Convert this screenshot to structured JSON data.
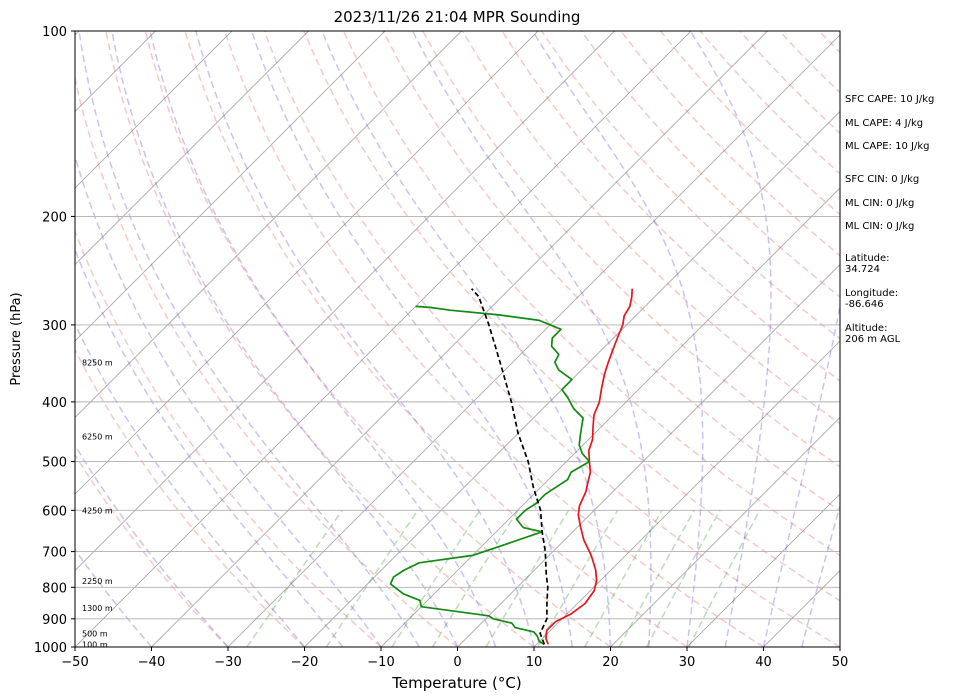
{
  "chart_data": {
    "type": "line",
    "title": "2023/11/26 21:04 MPR Sounding",
    "xlabel": "Temperature (°C)",
    "ylabel": "Pressure (hPa)",
    "xlim": [
      -50,
      50
    ],
    "ylim": [
      1000,
      100
    ],
    "y_scale": "log",
    "grid": true,
    "x_ticks": [
      -50,
      -40,
      -30,
      -20,
      -10,
      0,
      10,
      20,
      30,
      40,
      50
    ],
    "y_ticks": [
      1000,
      900,
      800,
      700,
      600,
      500,
      400,
      300,
      200,
      100
    ],
    "height_labels": [
      {
        "text": "8250 m",
        "p": 345
      },
      {
        "text": "6250 m",
        "p": 455
      },
      {
        "text": "4250 m",
        "p": 600
      },
      {
        "text": "2250 m",
        "p": 782
      },
      {
        "text": "1300 m",
        "p": 865
      },
      {
        "text": "500 m",
        "p": 950
      },
      {
        "text": "100 m",
        "p": 990
      }
    ],
    "info": [
      {
        "text": "SFC CAPE: 10 J/kg"
      },
      {
        "text": "ML CAPE: 4 J/kg"
      },
      {
        "text": "ML CAPE: 10 J/kg"
      },
      {
        "text": "SFC CIN: 0 J/kg"
      },
      {
        "text": "ML CIN: 0 J/kg"
      },
      {
        "text": "ML CIN: 0 J/kg"
      },
      {
        "text": "Latitude:",
        "sub": "34.724"
      },
      {
        "text": "Longitude:",
        "sub": "-86.646"
      },
      {
        "text": "Altitude:",
        "sub": "206 m AGL"
      }
    ],
    "series": [
      {
        "color": "#e8141a",
        "style": "solid",
        "points": [
          [
            11.5,
            990
          ],
          [
            10.5,
            970
          ],
          [
            9.5,
            940
          ],
          [
            9.5,
            910
          ],
          [
            10.5,
            885
          ],
          [
            11,
            850
          ],
          [
            10.5,
            810
          ],
          [
            9.5,
            780
          ],
          [
            8,
            750
          ],
          [
            5.5,
            710
          ],
          [
            2.5,
            670
          ],
          [
            0.5,
            640
          ],
          [
            -1.5,
            610
          ],
          [
            -2.5,
            590
          ],
          [
            -3.5,
            560
          ],
          [
            -4.5,
            540
          ],
          [
            -5.5,
            520
          ],
          [
            -7,
            500
          ],
          [
            -8.5,
            480
          ],
          [
            -9.5,
            460
          ],
          [
            -11,
            440
          ],
          [
            -12.5,
            420
          ],
          [
            -13.5,
            400
          ],
          [
            -15,
            380
          ],
          [
            -16.5,
            360
          ],
          [
            -17.5,
            345
          ],
          [
            -18.5,
            330
          ],
          [
            -19.5,
            315
          ],
          [
            -20.5,
            300
          ],
          [
            -21.5,
            290
          ],
          [
            -22,
            280
          ],
          [
            -23,
            270
          ],
          [
            -24,
            262
          ]
        ]
      },
      {
        "color": "#118a11",
        "style": "solid",
        "points": [
          [
            11,
            990
          ],
          [
            10,
            980
          ],
          [
            9,
            960
          ],
          [
            8,
            945
          ],
          [
            5,
            930
          ],
          [
            4,
            915
          ],
          [
            1,
            900
          ],
          [
            0,
            890
          ],
          [
            -10,
            860
          ],
          [
            -11,
            840
          ],
          [
            -14,
            820
          ],
          [
            -17,
            790
          ],
          [
            -17.5,
            770
          ],
          [
            -17,
            750
          ],
          [
            -16,
            730
          ],
          [
            -10,
            710
          ],
          [
            -7,
            680
          ],
          [
            -5,
            660
          ],
          [
            -4,
            650
          ],
          [
            -7,
            640
          ],
          [
            -9,
            620
          ],
          [
            -9,
            600
          ],
          [
            -8.5,
            585
          ],
          [
            -8.5,
            565
          ],
          [
            -8,
            550
          ],
          [
            -7.5,
            535
          ],
          [
            -8,
            520
          ],
          [
            -7,
            500
          ],
          [
            -9,
            485
          ],
          [
            -10.5,
            470
          ],
          [
            -11.5,
            455
          ],
          [
            -12.5,
            440
          ],
          [
            -13.5,
            425
          ],
          [
            -16,
            410
          ],
          [
            -18,
            395
          ],
          [
            -20,
            382
          ],
          [
            -20,
            368
          ],
          [
            -23,
            355
          ],
          [
            -24.5,
            345
          ],
          [
            -25,
            335
          ],
          [
            -27,
            325
          ],
          [
            -28,
            315
          ],
          [
            -28,
            305
          ],
          [
            -32,
            295
          ],
          [
            -38,
            289
          ],
          [
            -45,
            284
          ],
          [
            -48,
            281
          ],
          [
            -50,
            280
          ]
        ]
      },
      {
        "color": "#000000",
        "style": "dashed",
        "points": [
          [
            11,
            990
          ],
          [
            9,
            950
          ],
          [
            8,
            900
          ],
          [
            6,
            850
          ],
          [
            4,
            800
          ],
          [
            2,
            760
          ],
          [
            -1,
            700
          ],
          [
            -4,
            650
          ],
          [
            -7,
            600
          ],
          [
            -11,
            550
          ],
          [
            -15,
            500
          ],
          [
            -20,
            450
          ],
          [
            -25,
            400
          ],
          [
            -31,
            350
          ],
          [
            -38,
            300
          ],
          [
            -43,
            270
          ],
          [
            -45,
            262
          ]
        ]
      }
    ]
  }
}
